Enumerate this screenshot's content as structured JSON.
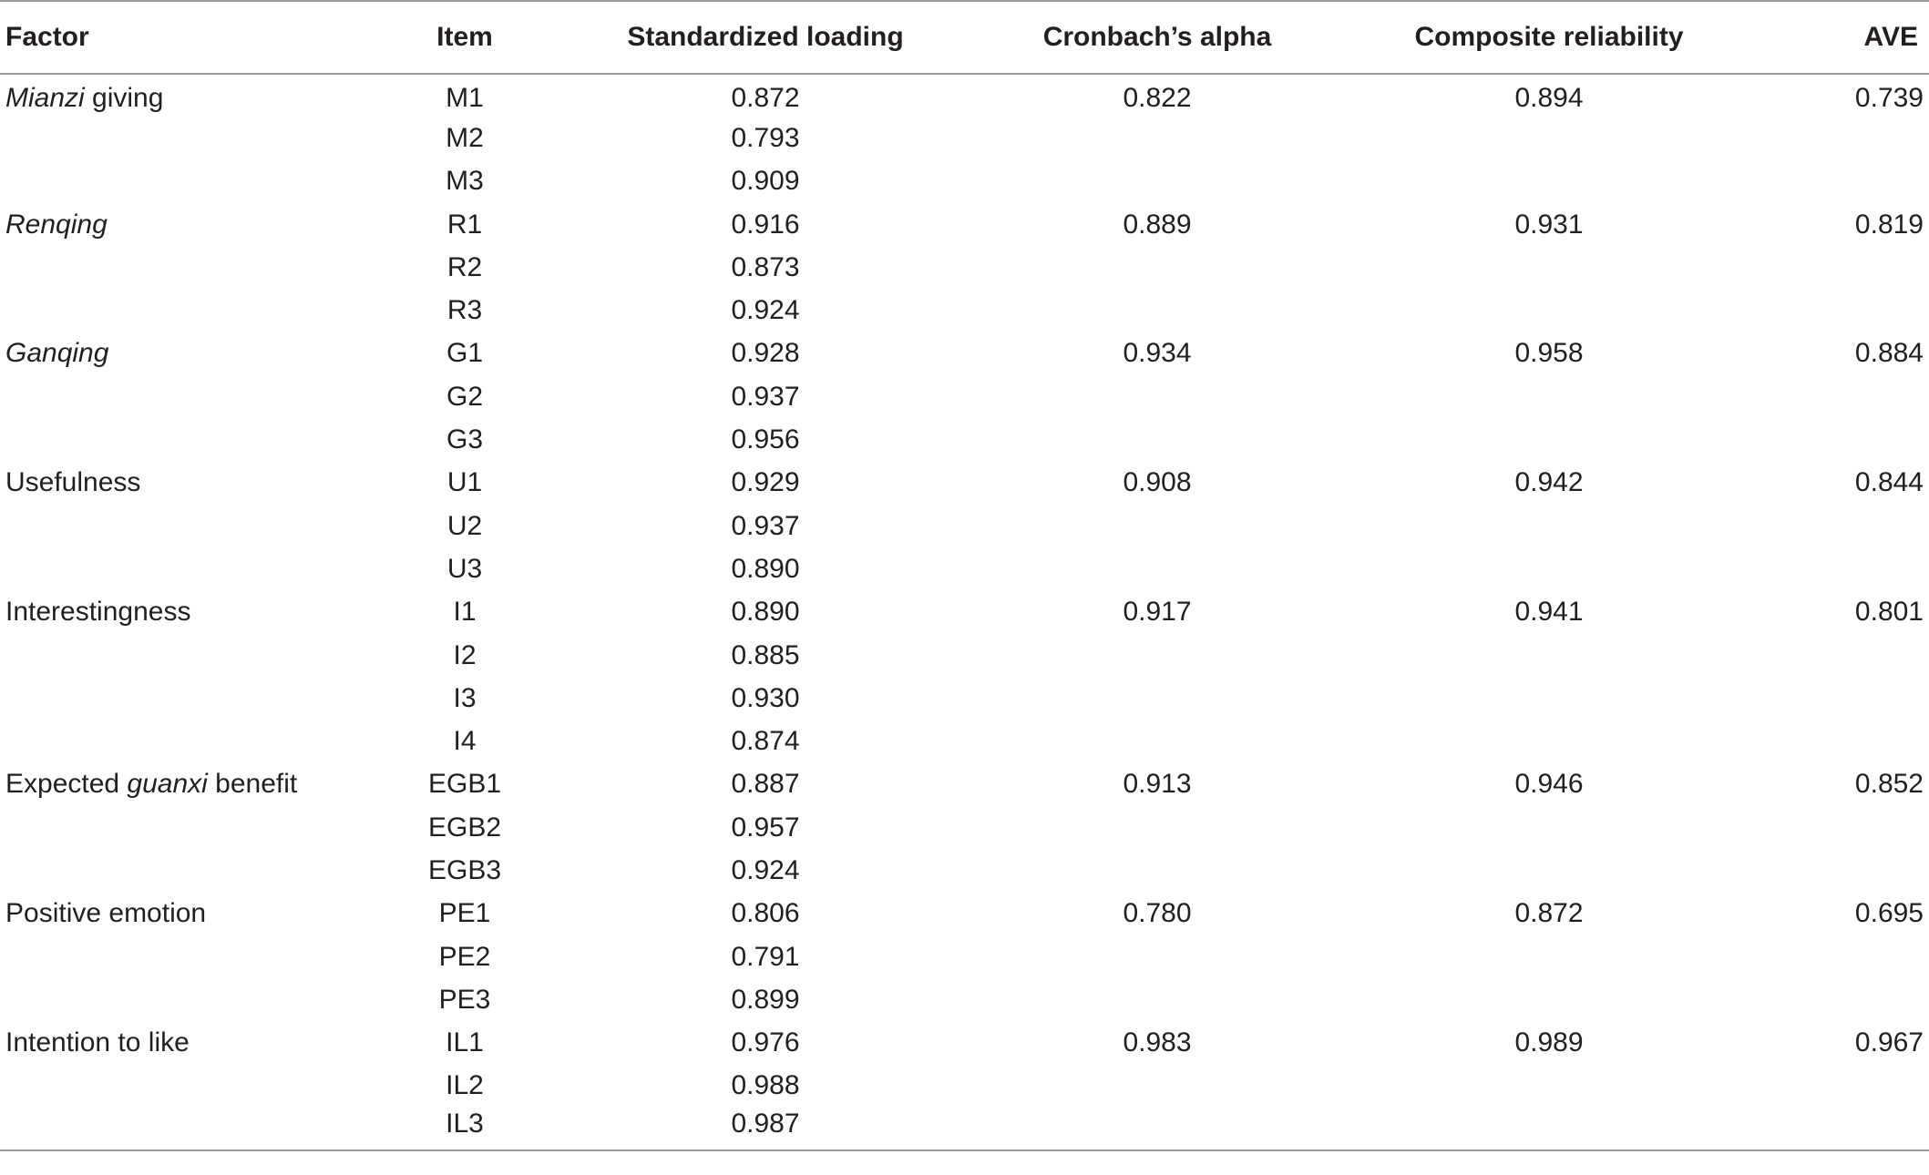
{
  "table": {
    "headers": {
      "factor": "Factor",
      "item": "Item",
      "loading": "Standardized loading",
      "alpha": "Cronbach’s alpha",
      "cr": "Composite reliability",
      "ave": "AVE"
    },
    "groups": [
      {
        "factor_italic": "Mianzi",
        "factor_mid": "",
        "factor_rest": " giving",
        "factor_pre": "",
        "alpha": "0.822",
        "cr": "0.894",
        "ave": "0.739",
        "items": [
          {
            "item": "M1",
            "loading": "0.872"
          },
          {
            "item": "M2",
            "loading": "0.793"
          },
          {
            "item": "M3",
            "loading": "0.909"
          }
        ]
      },
      {
        "factor_pre": "",
        "factor_italic": "Renqing",
        "factor_rest": "",
        "alpha": "0.889",
        "cr": "0.931",
        "ave": "0.819",
        "items": [
          {
            "item": "R1",
            "loading": "0.916"
          },
          {
            "item": "R2",
            "loading": "0.873"
          },
          {
            "item": "R3",
            "loading": "0.924"
          }
        ]
      },
      {
        "factor_pre": "",
        "factor_italic": "Ganqing",
        "factor_rest": "",
        "alpha": "0.934",
        "cr": "0.958",
        "ave": "0.884",
        "items": [
          {
            "item": "G1",
            "loading": "0.928"
          },
          {
            "item": "G2",
            "loading": "0.937"
          },
          {
            "item": "G3",
            "loading": "0.956"
          }
        ]
      },
      {
        "factor_pre": "Usefulness",
        "factor_italic": "",
        "factor_rest": "",
        "alpha": "0.908",
        "cr": "0.942",
        "ave": "0.844",
        "items": [
          {
            "item": "U1",
            "loading": "0.929"
          },
          {
            "item": "U2",
            "loading": "0.937"
          },
          {
            "item": "U3",
            "loading": "0.890"
          }
        ]
      },
      {
        "factor_pre": "Interestingness",
        "factor_italic": "",
        "factor_rest": "",
        "alpha": "0.917",
        "cr": "0.941",
        "ave": "0.801",
        "items": [
          {
            "item": "I1",
            "loading": "0.890"
          },
          {
            "item": "I2",
            "loading": "0.885"
          },
          {
            "item": "I3",
            "loading": "0.930"
          },
          {
            "item": "I4",
            "loading": "0.874"
          }
        ]
      },
      {
        "factor_pre": "Expected ",
        "factor_italic": "guanxi",
        "factor_rest": " benefit",
        "alpha": "0.913",
        "cr": "0.946",
        "ave": "0.852",
        "items": [
          {
            "item": "EGB1",
            "loading": "0.887"
          },
          {
            "item": "EGB2",
            "loading": "0.957"
          },
          {
            "item": "EGB3",
            "loading": "0.924"
          }
        ]
      },
      {
        "factor_pre": "Positive emotion",
        "factor_italic": "",
        "factor_rest": "",
        "alpha": "0.780",
        "cr": "0.872",
        "ave": "0.695",
        "items": [
          {
            "item": "PE1",
            "loading": "0.806"
          },
          {
            "item": "PE2",
            "loading": "0.791"
          },
          {
            "item": "PE3",
            "loading": "0.899"
          }
        ]
      },
      {
        "factor_pre": "Intention to like",
        "factor_italic": "",
        "factor_rest": "",
        "alpha": "0.983",
        "cr": "0.989",
        "ave": "0.967",
        "items": [
          {
            "item": "IL1",
            "loading": "0.976"
          },
          {
            "item": "IL2",
            "loading": "0.988"
          },
          {
            "item": "IL3",
            "loading": "0.987"
          }
        ]
      }
    ]
  }
}
